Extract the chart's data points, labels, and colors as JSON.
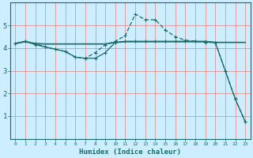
{
  "xlabel": "Humidex (Indice chaleur)",
  "bg_color": "#cceeff",
  "grid_color": "#e88080",
  "line_color": "#1a6b6b",
  "xlim": [
    -0.5,
    23.5
  ],
  "ylim": [
    0,
    6
  ],
  "xticks": [
    0,
    1,
    2,
    3,
    4,
    5,
    6,
    7,
    8,
    9,
    10,
    11,
    12,
    13,
    14,
    15,
    16,
    17,
    18,
    19,
    20,
    21,
    22,
    23
  ],
  "yticks": [
    1,
    2,
    3,
    4,
    5
  ],
  "line1_x": [
    0,
    1,
    2,
    3,
    4,
    5,
    6,
    7,
    8,
    9,
    10,
    11,
    12,
    13,
    14,
    15,
    16,
    17,
    18,
    19,
    20,
    21,
    22,
    23
  ],
  "line1_y": [
    4.2,
    4.3,
    4.15,
    4.05,
    3.95,
    3.85,
    3.6,
    3.55,
    3.55,
    3.8,
    4.25,
    4.3,
    4.3,
    4.3,
    4.3,
    4.3,
    4.3,
    4.3,
    4.3,
    4.3,
    4.25,
    3.0,
    1.75,
    0.75
  ],
  "line2_x": [
    0,
    1,
    2,
    3,
    4,
    5,
    6,
    7,
    8,
    9,
    10,
    11,
    12,
    13,
    14,
    15,
    16,
    17,
    18,
    19,
    20,
    21,
    22,
    23
  ],
  "line2_y": [
    4.2,
    4.28,
    4.2,
    4.18,
    4.18,
    4.18,
    4.18,
    4.18,
    4.18,
    4.18,
    4.25,
    4.28,
    4.28,
    4.28,
    4.28,
    4.28,
    4.28,
    4.28,
    4.28,
    4.28,
    4.25,
    4.25,
    4.25,
    4.25
  ],
  "line3_x": [
    0,
    1,
    2,
    3,
    4,
    5,
    6,
    7,
    8,
    9,
    10,
    11,
    12,
    13,
    14,
    15,
    16,
    17,
    18,
    19,
    20,
    21,
    22,
    23
  ],
  "line3_y": [
    4.2,
    4.3,
    4.2,
    4.05,
    3.95,
    3.85,
    3.6,
    3.55,
    3.8,
    4.15,
    4.3,
    4.55,
    5.5,
    5.25,
    5.25,
    4.8,
    4.5,
    4.35,
    4.3,
    4.25,
    4.25,
    3.0,
    1.75,
    0.75
  ]
}
